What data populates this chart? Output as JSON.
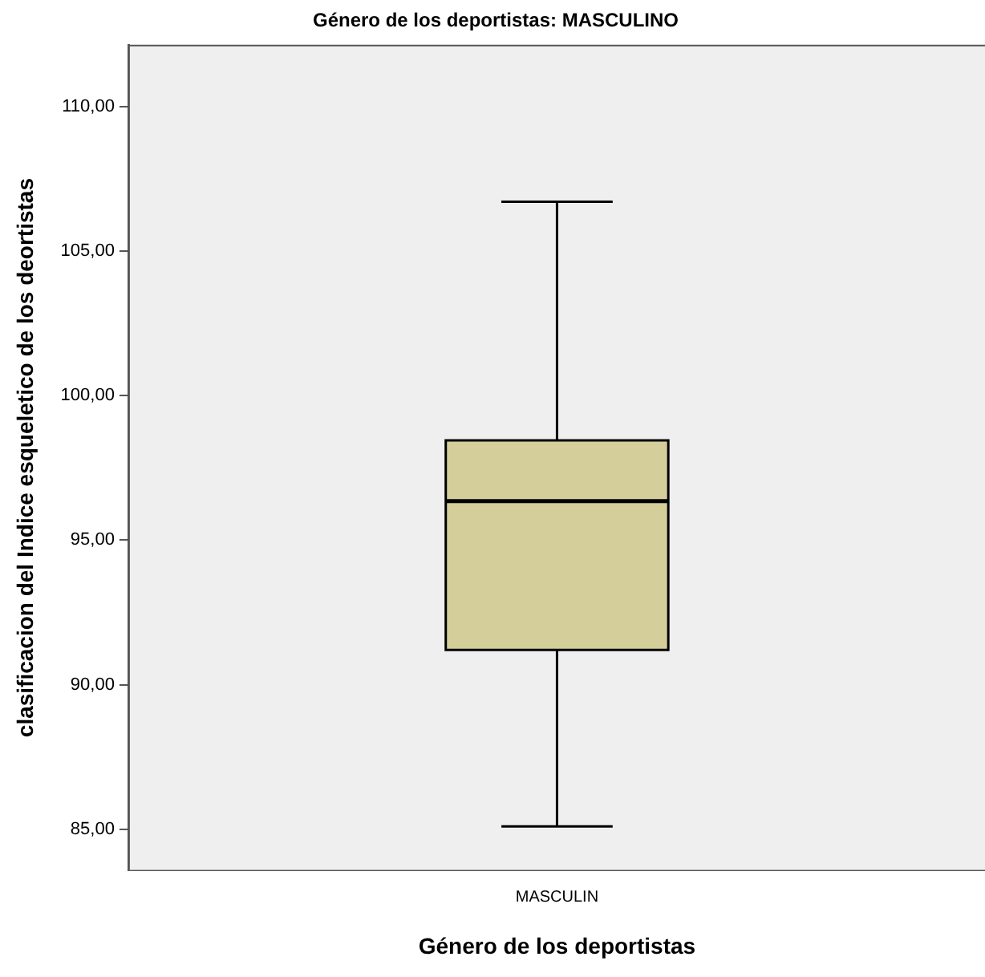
{
  "chart_data": {
    "type": "box",
    "title": "Género de los deportistas: MASCULINO",
    "xlabel": "Género de los deportistas",
    "ylabel": "clasificacion del Indice esqueletico de los deortistas",
    "categories": [
      "MASCULIN"
    ],
    "boxes": [
      {
        "low": 85.1,
        "q1": 91.2,
        "median": 96.35,
        "q3": 98.45,
        "high": 106.7
      }
    ],
    "color": "#d4cf9a",
    "ylim": [
      83.6,
      112.1
    ],
    "yticks": [
      {
        "value": 85,
        "label": "85,00"
      },
      {
        "value": 90,
        "label": "90,00"
      },
      {
        "value": 95,
        "label": "95,00"
      },
      {
        "value": 100,
        "label": "100,00"
      },
      {
        "value": 105,
        "label": "105,00"
      },
      {
        "value": 110,
        "label": "110,00"
      }
    ]
  }
}
